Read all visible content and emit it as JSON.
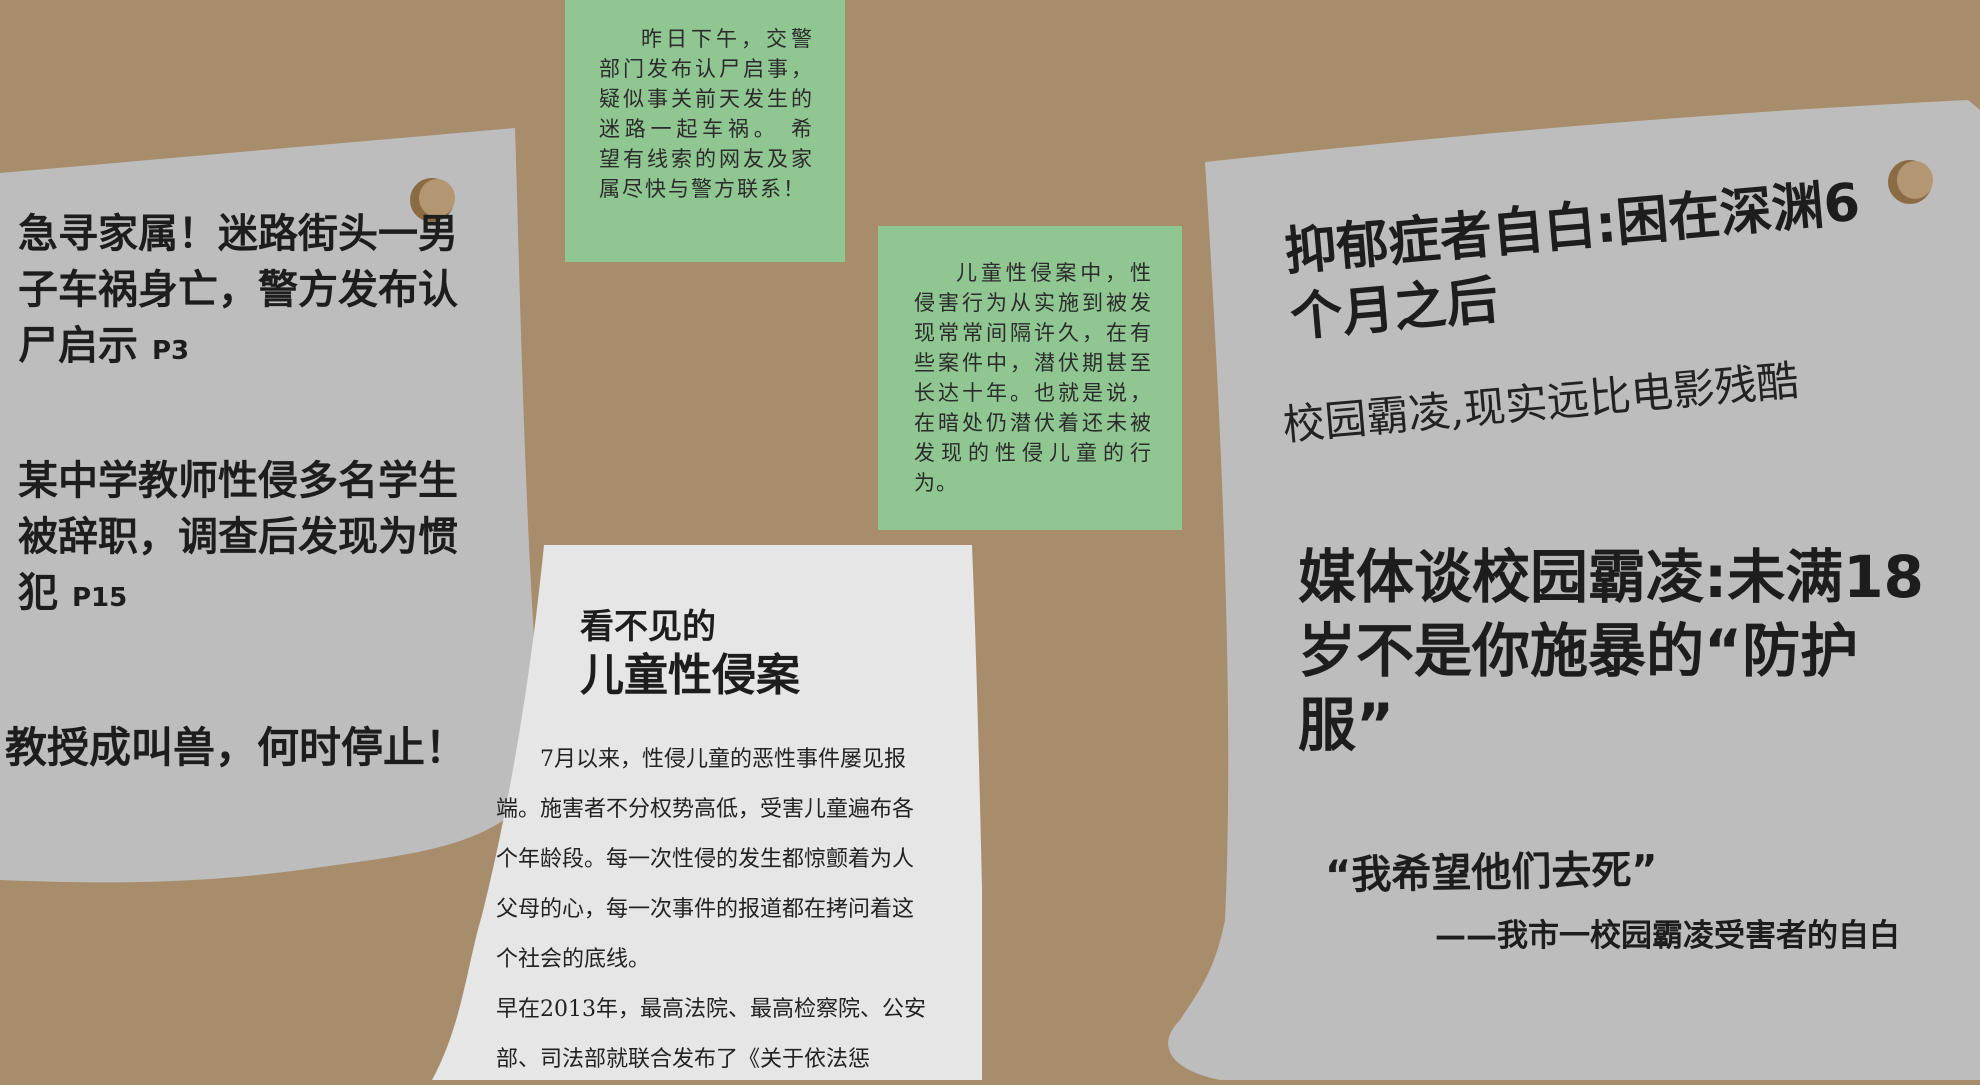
{
  "left_paper": {
    "headline1": "急寻家属！迷路街头一男子车祸身亡，警方发布认尸启示",
    "headline1_page": "P3",
    "headline2": "某中学教师性侵多名学生被辞职，调查后发现为惯犯",
    "headline2_page": "P15",
    "headline3": "教授成叫兽，何时停止！"
  },
  "note_top": {
    "text": "昨日下午，交警部门发布认尸启事，疑似事关前天发生的迷路一起车祸。 希望有线索的网友及家属尽快与警方联系！"
  },
  "note_middle": {
    "text": "儿童性侵案中，性侵害行为从实施到被发现常常间隔许久，在有些案件中，潜伏期甚至长达十年。也就是说，在暗处仍潜伏着还未被发现的性侵儿童的行为。"
  },
  "middle_paper": {
    "title_line1": "看不见的",
    "title_line2": "儿童性侵案",
    "paragraph1": "7月以来，性侵儿童的恶性事件屡见报端。施害者不分权势高低，受害儿童遍布各个年龄段。每一次性侵的发生都惊颤着为人父母的心，每一次事件的报道都在拷问着这个社会的底线。",
    "paragraph2": "早在2013年，最高法院、最高检察院、公安部、司法部就联合发布了《关于依法惩"
  },
  "right_paper": {
    "headline1": "抑郁症者自白:困在深渊6个月之后",
    "subheadline": "校园霸凌,现实远比电影残酷",
    "headline2": "媒体谈校园霸凌:未满18岁不是你施暴的“防护服”",
    "quote": "“我希望他们去死”",
    "quote_source": "——我市一校园霸凌受害者的自白"
  },
  "colors": {
    "board": "#a78d6b",
    "grey_paper": "#bdbdbd",
    "white_paper": "#e6e6e6",
    "note_green": "#8fc691",
    "pin": "#8a6b43"
  }
}
